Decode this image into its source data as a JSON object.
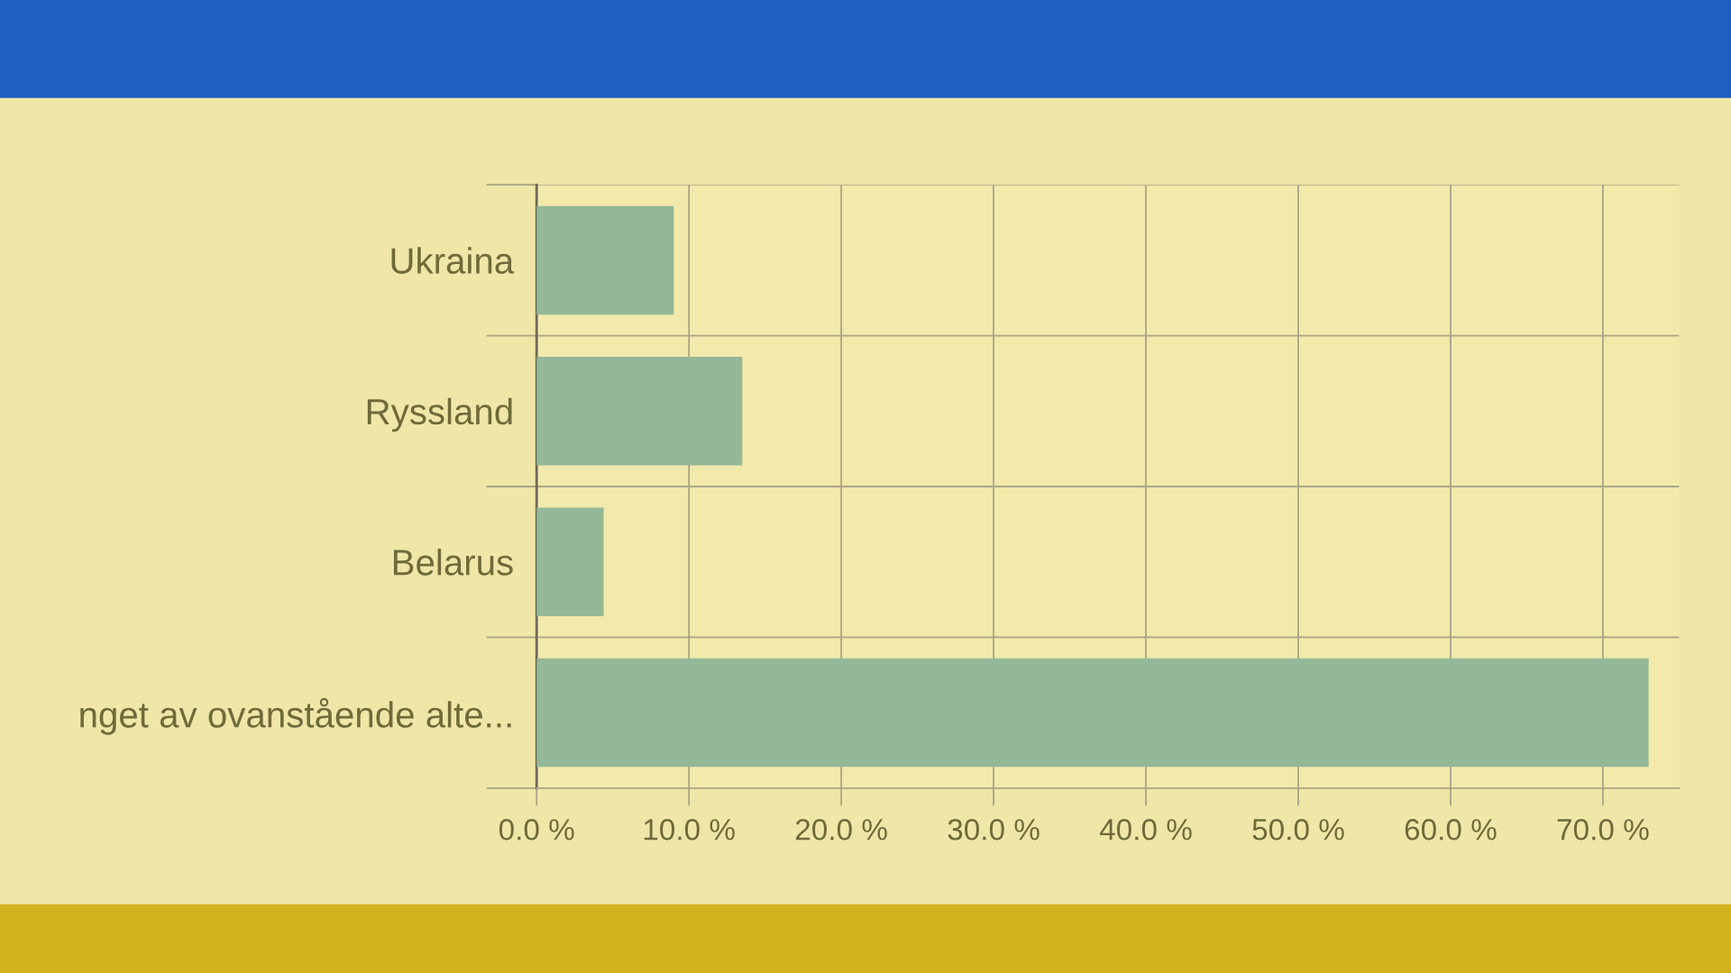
{
  "chart_data": {
    "type": "bar",
    "orientation": "horizontal",
    "categories": [
      "Ukraina",
      "Ryssland",
      "Belarus",
      "nget av ovanstående alte..."
    ],
    "values": [
      9.0,
      13.5,
      4.4,
      73
    ],
    "color": "#93b898",
    "xlim": [
      0,
      75
    ],
    "xticks": [
      {
        "value": 0,
        "label": "0.0 %"
      },
      {
        "value": 10,
        "label": "10.0 %"
      },
      {
        "value": 20,
        "label": "20.0 %"
      },
      {
        "value": 30,
        "label": "30.0 %"
      },
      {
        "value": 40,
        "label": "40.0 %"
      },
      {
        "value": 50,
        "label": "50.0 %"
      },
      {
        "value": 60,
        "label": "60.0 %"
      },
      {
        "value": 70,
        "label": "70.0 %"
      }
    ],
    "grid": true
  }
}
